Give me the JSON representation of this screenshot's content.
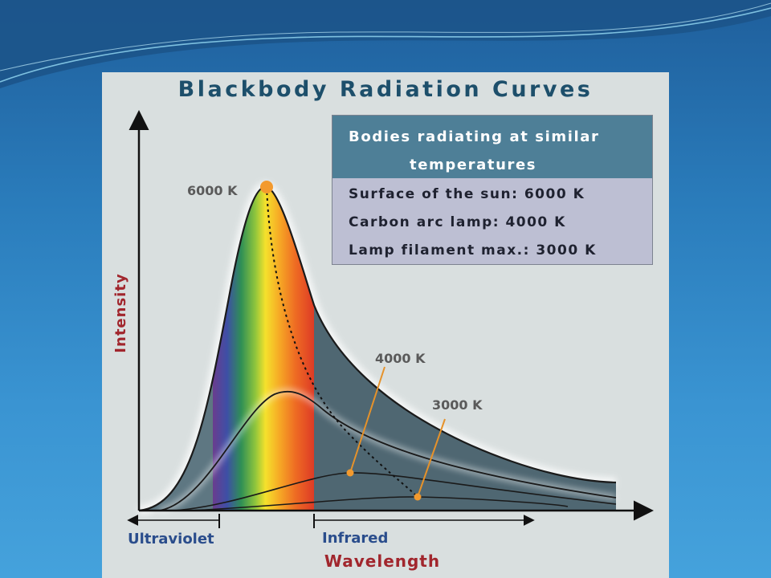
{
  "slide": {
    "colors": {
      "background": "#2a7cbb",
      "panel": "#d9dfdf"
    }
  },
  "chart_data": {
    "type": "line",
    "title": "Blackbody Radiation Curves",
    "xlabel": "Wavelength",
    "ylabel": "Intensity",
    "x_axis_ticks": false,
    "y_axis_ticks": false,
    "spectrum_regions": [
      "Ultraviolet",
      "Infrared"
    ],
    "legend": {
      "header": [
        "Bodies radiating at similar",
        "temperatures"
      ],
      "entries": [
        "Surface of the sun: 6000 K",
        "Carbon arc lamp: 4000 K",
        "Lamp filament max.: 3000 K"
      ]
    },
    "series": [
      {
        "name": "6000 K",
        "color": "#1a1a1a",
        "peak_relative_intensity": 1.0
      },
      {
        "name": "4000 K",
        "color": "#1a1a1a",
        "peak_relative_intensity": 0.37
      },
      {
        "name": "3000 K",
        "color": "#1a1a1a",
        "peak_relative_intensity": 0.13
      }
    ],
    "peak_locus": {
      "style": "dotted",
      "markers_color": "#f39a2e"
    },
    "grid": false
  }
}
